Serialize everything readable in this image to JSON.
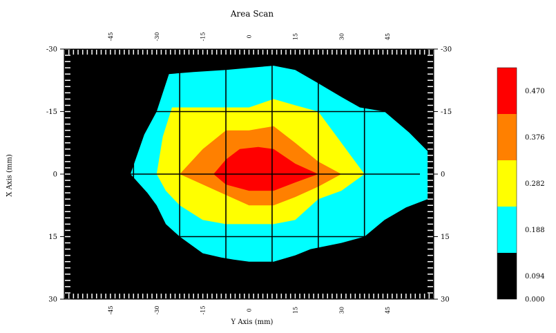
{
  "chart_data": {
    "type": "heatmap",
    "title": "Area Scan",
    "xlabel": "Y Axis (mm)",
    "ylabel": "X Axis (mm)",
    "x_range": [
      -60,
      60
    ],
    "y_range": [
      -30,
      30
    ],
    "x_ticks": [
      "-45",
      "-30",
      "-15",
      "0",
      "15",
      "30",
      "45"
    ],
    "x_tick_values": [
      -45,
      -30,
      -15,
      0,
      15,
      30,
      45
    ],
    "y_ticks": [
      "-30",
      "-15",
      "0",
      "15",
      "30"
    ],
    "y_tick_values": [
      -30,
      -15,
      0,
      15,
      30
    ],
    "grid_lines": {
      "x": [
        -37.5,
        -22.5,
        -7.5,
        7.5,
        22.5,
        37.5
      ],
      "y": [
        -15,
        0,
        15
      ]
    },
    "grid": true,
    "legend_placement": "right",
    "colorbar": {
      "labels": [
        "0.470",
        "0.376",
        "0.282",
        "0.188",
        "0.094",
        "0.000"
      ],
      "bins": [
        {
          "min": 0.0,
          "max": 0.094,
          "color": "#000000"
        },
        {
          "min": 0.094,
          "max": 0.188,
          "color": "#00ffff"
        },
        {
          "min": 0.188,
          "max": 0.282,
          "color": "#ffff00"
        },
        {
          "min": 0.282,
          "max": 0.376,
          "color": "#ff8000"
        },
        {
          "min": 0.376,
          "max": 0.47,
          "color": "#ff0000"
        }
      ]
    },
    "contours": [
      {
        "level": "0.094-0.188",
        "color": "#00ffff",
        "points": [
          [
            -38.5,
            0
          ],
          [
            -34,
            -9.5
          ],
          [
            -30,
            -15
          ],
          [
            -26,
            -24
          ],
          [
            -18,
            -24.5
          ],
          [
            -7.5,
            -25
          ],
          [
            0,
            -25.5
          ],
          [
            8,
            -26
          ],
          [
            15,
            -25
          ],
          [
            22,
            -22
          ],
          [
            30,
            -18.5
          ],
          [
            36,
            -16
          ],
          [
            44,
            -15
          ],
          [
            52,
            -10
          ],
          [
            58,
            -5.5
          ],
          [
            58,
            6
          ],
          [
            51,
            8
          ],
          [
            44,
            11
          ],
          [
            37.5,
            15
          ],
          [
            30,
            16.5
          ],
          [
            20,
            18
          ],
          [
            15,
            19.5
          ],
          [
            8,
            21
          ],
          [
            0,
            21
          ],
          [
            -5,
            20.5
          ],
          [
            -9,
            20
          ],
          [
            -15,
            19
          ],
          [
            -22.5,
            15
          ],
          [
            -27,
            12
          ],
          [
            -30,
            7.5
          ],
          [
            -33,
            4.5
          ]
        ]
      },
      {
        "level": "0.188-0.282",
        "color": "#ffff00",
        "points": [
          [
            -30,
            0
          ],
          [
            -28,
            -9
          ],
          [
            -25,
            -16
          ],
          [
            -15,
            -16
          ],
          [
            0,
            -16
          ],
          [
            8,
            -18
          ],
          [
            15,
            -16.5
          ],
          [
            22.5,
            -15
          ],
          [
            30,
            -7.5
          ],
          [
            37.5,
            0
          ],
          [
            30,
            4
          ],
          [
            22.5,
            6
          ],
          [
            15,
            11
          ],
          [
            8,
            12
          ],
          [
            0,
            12
          ],
          [
            -7.5,
            12
          ],
          [
            -15,
            11
          ],
          [
            -22.5,
            7.5
          ],
          [
            -27,
            4
          ]
        ]
      },
      {
        "level": "0.282-0.376",
        "color": "#ff8000",
        "points": [
          [
            -22.5,
            0
          ],
          [
            -15,
            -6
          ],
          [
            -7.5,
            -10.5
          ],
          [
            0,
            -10.5
          ],
          [
            8,
            -11.5
          ],
          [
            15,
            -7.5
          ],
          [
            22.5,
            -3
          ],
          [
            30,
            0
          ],
          [
            22.5,
            3
          ],
          [
            15,
            5.5
          ],
          [
            8,
            7.5
          ],
          [
            0,
            7.5
          ],
          [
            -7.5,
            5
          ],
          [
            -15,
            2.5
          ]
        ]
      },
      {
        "level": "0.376-0.470",
        "color": "#ff0000",
        "points": [
          [
            -11.5,
            0
          ],
          [
            -7.5,
            -3.5
          ],
          [
            -3,
            -6
          ],
          [
            3,
            -6.5
          ],
          [
            8,
            -6
          ],
          [
            15,
            -2.5
          ],
          [
            22.5,
            0
          ],
          [
            15,
            2
          ],
          [
            8,
            4
          ],
          [
            0,
            4
          ],
          [
            -7.5,
            2.5
          ]
        ]
      }
    ]
  }
}
